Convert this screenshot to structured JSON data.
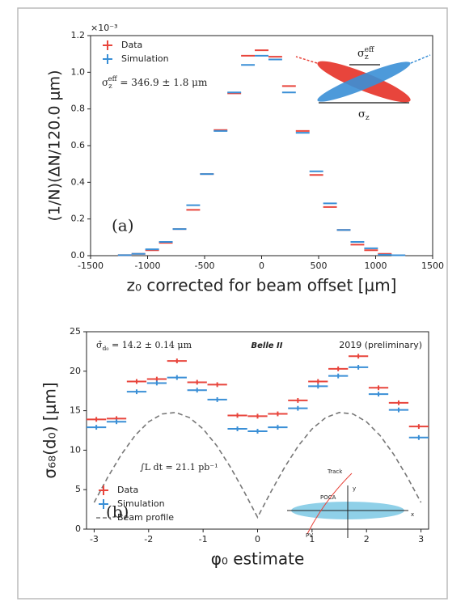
{
  "chart_data": [
    {
      "type": "errorbar",
      "ylabel": "(1/N)(ΔN/120.0 μm)",
      "xlabel": "z₀ corrected for beam offset [μm]",
      "y_offset_label": "×10⁻³",
      "panel_label": "(a)",
      "annotation": {
        "base": "σ",
        "sub": "z",
        "sup": "eff",
        "rest": " = 346.9 ± 1.8 μm"
      },
      "inset_labels": [
        {
          "base": "σ",
          "sub": "z",
          "sup": "eff"
        },
        {
          "base": "σ",
          "sub": "z"
        }
      ],
      "legend": "upper left",
      "xlim": [
        -1500,
        1500
      ],
      "xticks": [
        -1500,
        -1000,
        -500,
        0,
        500,
        1000,
        1500
      ],
      "ylim": [
        0,
        1.2
      ],
      "yticks": [
        {
          "value": 0,
          "label": "0.0"
        },
        0.2,
        0.4,
        0.6,
        0.8,
        {
          "value": 1,
          "label": "1.0"
        },
        1.2
      ],
      "xerr": 60,
      "x": [
        -1200,
        -1080,
        -960,
        -840,
        -720,
        -600,
        -480,
        -360,
        -240,
        -120,
        0,
        120,
        240,
        360,
        480,
        600,
        720,
        840,
        960,
        1080,
        1200
      ],
      "series": [
        {
          "name": "Data",
          "color": "#e8453c",
          "values": [
            0.003,
            0.01,
            0.03,
            0.07,
            0.145,
            0.25,
            0.445,
            0.685,
            0.885,
            1.09,
            1.12,
            1.085,
            0.925,
            0.68,
            0.44,
            0.265,
            0.14,
            0.06,
            0.03,
            0.01,
            0.002
          ]
        },
        {
          "name": "Simulation",
          "color": "#3a8fd6",
          "values": [
            0.003,
            0.01,
            0.035,
            0.075,
            0.145,
            0.275,
            0.445,
            0.68,
            0.89,
            1.04,
            1.09,
            1.07,
            0.89,
            0.67,
            0.46,
            0.285,
            0.14,
            0.075,
            0.04,
            0.005,
            0.002
          ]
        }
      ]
    },
    {
      "type": "errorbar",
      "ylabel": "σ₆₈(d₀) [μm]",
      "xlabel": "φ₀ estimate",
      "panel_label": "(b)",
      "annotation": {
        "base": "σ̂",
        "sub": "d₀",
        "rest": " = 14.2 ± 0.14 μm"
      },
      "experiment": "Belle II",
      "status": "2019 (preliminary)",
      "luminosity": "∫L dt = 21.1 pb⁻¹",
      "inset_labels": [
        "Track",
        "POCA",
        "PV",
        "y",
        "x"
      ],
      "legend": "lower left",
      "xlim": [
        -3.14,
        3.14
      ],
      "xticks": [
        -3,
        -2,
        -1,
        0,
        1,
        2,
        3
      ],
      "ylim": [
        0,
        25
      ],
      "yticks": [
        0,
        5,
        10,
        15,
        20,
        25
      ],
      "xerr": 0.18,
      "yerr": 0.3,
      "x": [
        -2.96,
        -2.59,
        -2.22,
        -1.85,
        -1.48,
        -1.11,
        -0.74,
        -0.37,
        0,
        0.37,
        0.74,
        1.11,
        1.48,
        1.85,
        2.22,
        2.59,
        2.96
      ],
      "series": [
        {
          "name": "Data",
          "color": "#e8453c",
          "values": [
            13.9,
            14.0,
            18.7,
            19.0,
            21.3,
            18.6,
            18.3,
            14.4,
            14.3,
            14.6,
            16.3,
            18.7,
            20.3,
            21.9,
            17.9,
            16.0,
            13.0
          ]
        },
        {
          "name": "Simulation",
          "color": "#3a8fd6",
          "values": [
            12.9,
            13.6,
            17.4,
            18.5,
            19.2,
            17.6,
            16.4,
            12.7,
            12.4,
            12.9,
            15.3,
            18.1,
            19.4,
            20.5,
            17.1,
            15.1,
            11.6
          ]
        },
        {
          "name": "Beam profile",
          "color": "#777777",
          "style": "dashed",
          "x": [
            -3.0,
            -2.75,
            -2.5,
            -2.25,
            -2.0,
            -1.75,
            -1.5,
            -1.25,
            -1.0,
            -0.75,
            -0.5,
            -0.25,
            0,
            0.25,
            0.5,
            0.75,
            1.0,
            1.25,
            1.5,
            1.75,
            2.0,
            2.25,
            2.5,
            2.75,
            3.0
          ],
          "values": [
            3.38,
            6.58,
            9.46,
            11.85,
            13.59,
            14.59,
            14.77,
            14.12,
            12.69,
            10.57,
            7.87,
            4.79,
            1.5,
            4.79,
            7.87,
            10.57,
            12.69,
            14.12,
            14.77,
            14.59,
            13.59,
            11.85,
            9.46,
            6.58,
            3.38
          ]
        }
      ]
    }
  ]
}
